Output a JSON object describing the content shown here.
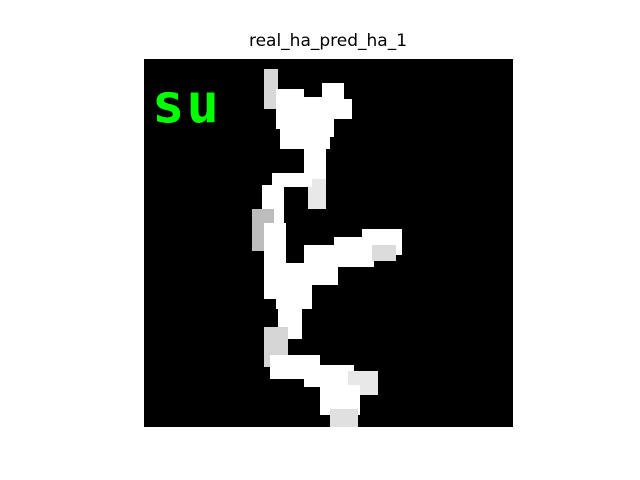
{
  "figure": {
    "title": "real_ha_pred_ha_1"
  },
  "image": {
    "overlay_label": "su",
    "overlay_color": "#00ff00",
    "stroke_color": "#ffffff",
    "background_color": "#000000"
  }
}
